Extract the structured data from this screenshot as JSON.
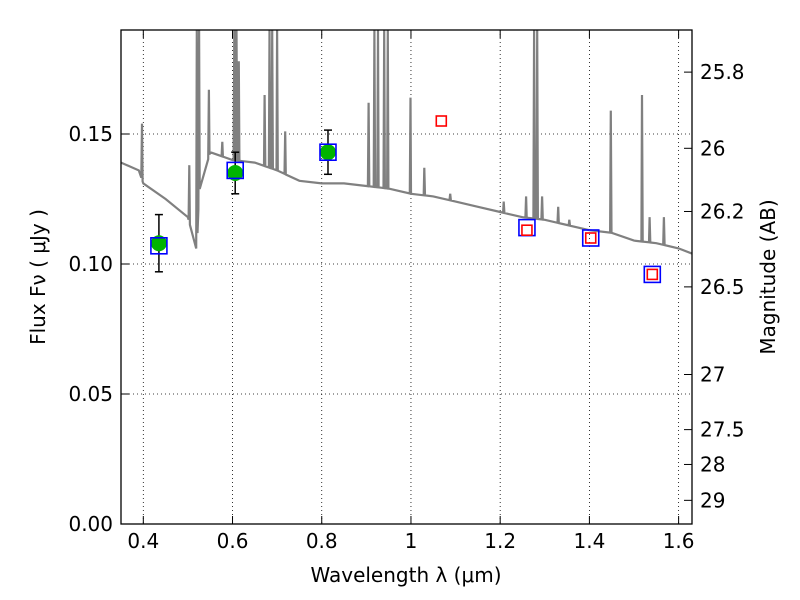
{
  "chart_data": {
    "type": "scatter",
    "xlabel": "Wavelength  λ (μm)",
    "ylabel": "Flux  Fν  ( μJy )",
    "y2label": "Magnitude (AB)",
    "xlim": [
      0.35,
      1.63
    ],
    "ylim": [
      0.0,
      0.19
    ],
    "grid": true,
    "x_ticks": [
      0.4,
      0.6,
      0.8,
      1.0,
      1.2,
      1.4,
      1.6
    ],
    "x_tick_labels": [
      "0.4",
      "0.6",
      "0.8",
      "1",
      "1.2",
      "1.4",
      "1.6"
    ],
    "y_ticks": [
      0.0,
      0.05,
      0.1,
      0.15
    ],
    "y_tick_labels": [
      "0.00",
      "0.05",
      "0.10",
      "0.15"
    ],
    "right_axis_ticks": [
      {
        "label": "25.8",
        "flux": 0.1738
      },
      {
        "label": "26",
        "flux": 0.1445
      },
      {
        "label": "26.2",
        "flux": 0.1202
      },
      {
        "label": "26.5",
        "flux": 0.0912
      },
      {
        "label": "27",
        "flux": 0.0575
      },
      {
        "label": "27.5",
        "flux": 0.0363
      },
      {
        "label": "28",
        "flux": 0.0229
      },
      {
        "label": "29",
        "flux": 0.0091
      }
    ],
    "series": [
      {
        "marker": "circle",
        "color": "#00b400",
        "points": [
          {
            "x": 0.435,
            "y": 0.108,
            "yerr": 0.011
          },
          {
            "x": 0.606,
            "y": 0.135,
            "yerr": 0.008
          },
          {
            "x": 0.814,
            "y": 0.143,
            "yerr": 0.0085
          }
        ]
      },
      {
        "marker": "square-open",
        "color": "#0000ff",
        "points": [
          {
            "x": 0.435,
            "y": 0.107
          },
          {
            "x": 0.606,
            "y": 0.136
          },
          {
            "x": 0.814,
            "y": 0.143
          },
          {
            "x": 1.26,
            "y": 0.114
          },
          {
            "x": 1.403,
            "y": 0.11
          },
          {
            "x": 1.541,
            "y": 0.096
          }
        ]
      },
      {
        "marker": "square-open",
        "color": "#ff0000",
        "points": [
          {
            "x": 1.068,
            "y": 0.155
          },
          {
            "x": 1.26,
            "y": 0.113
          },
          {
            "x": 1.403,
            "y": 0.11
          },
          {
            "x": 1.541,
            "y": 0.096
          }
        ]
      }
    ],
    "model_spectrum": {
      "color": "#808080",
      "continuum": [
        [
          0.35,
          0.139
        ],
        [
          0.39,
          0.136
        ],
        [
          0.4,
          0.131
        ],
        [
          0.45,
          0.125
        ],
        [
          0.5,
          0.118
        ],
        [
          0.52,
          0.105
        ],
        [
          0.525,
          0.128
        ],
        [
          0.55,
          0.143
        ],
        [
          0.6,
          0.14
        ],
        [
          0.65,
          0.139
        ],
        [
          0.7,
          0.136
        ],
        [
          0.75,
          0.132
        ],
        [
          0.8,
          0.131
        ],
        [
          0.85,
          0.131
        ],
        [
          0.9,
          0.13
        ],
        [
          0.95,
          0.129
        ],
        [
          1.0,
          0.127
        ],
        [
          1.05,
          0.126
        ],
        [
          1.1,
          0.124
        ],
        [
          1.15,
          0.122
        ],
        [
          1.2,
          0.12
        ],
        [
          1.25,
          0.118
        ],
        [
          1.3,
          0.117
        ],
        [
          1.35,
          0.115
        ],
        [
          1.4,
          0.113
        ],
        [
          1.45,
          0.112
        ],
        [
          1.5,
          0.109
        ],
        [
          1.55,
          0.108
        ],
        [
          1.6,
          0.106
        ],
        [
          1.63,
          0.104
        ]
      ],
      "lines": [
        {
          "x": 0.397,
          "peak": 0.154
        },
        {
          "x": 0.503,
          "peak": 0.138
        },
        {
          "x": 0.52,
          "peak": 0.19
        },
        {
          "x": 0.525,
          "peak": 0.19
        },
        {
          "x": 0.547,
          "peak": 0.167
        },
        {
          "x": 0.577,
          "peak": 0.147
        },
        {
          "x": 0.604,
          "peak": 0.19
        },
        {
          "x": 0.609,
          "peak": 0.19
        },
        {
          "x": 0.614,
          "peak": 0.178
        },
        {
          "x": 0.672,
          "peak": 0.165
        },
        {
          "x": 0.683,
          "peak": 0.19
        },
        {
          "x": 0.689,
          "peak": 0.19
        },
        {
          "x": 0.7,
          "peak": 0.19
        },
        {
          "x": 0.718,
          "peak": 0.151
        },
        {
          "x": 0.905,
          "peak": 0.162
        },
        {
          "x": 0.918,
          "peak": 0.19
        },
        {
          "x": 0.926,
          "peak": 0.19
        },
        {
          "x": 0.94,
          "peak": 0.19
        },
        {
          "x": 0.948,
          "peak": 0.19
        },
        {
          "x": 0.999,
          "peak": 0.164
        },
        {
          "x": 1.03,
          "peak": 0.137
        },
        {
          "x": 1.088,
          "peak": 0.127
        },
        {
          "x": 1.208,
          "peak": 0.124
        },
        {
          "x": 1.258,
          "peak": 0.126
        },
        {
          "x": 1.276,
          "peak": 0.19
        },
        {
          "x": 1.283,
          "peak": 0.19
        },
        {
          "x": 1.294,
          "peak": 0.126
        },
        {
          "x": 1.33,
          "peak": 0.122
        },
        {
          "x": 1.355,
          "peak": 0.117
        },
        {
          "x": 1.448,
          "peak": 0.159
        },
        {
          "x": 1.518,
          "peak": 0.165
        },
        {
          "x": 1.535,
          "peak": 0.118
        },
        {
          "x": 1.567,
          "peak": 0.118
        }
      ]
    }
  }
}
